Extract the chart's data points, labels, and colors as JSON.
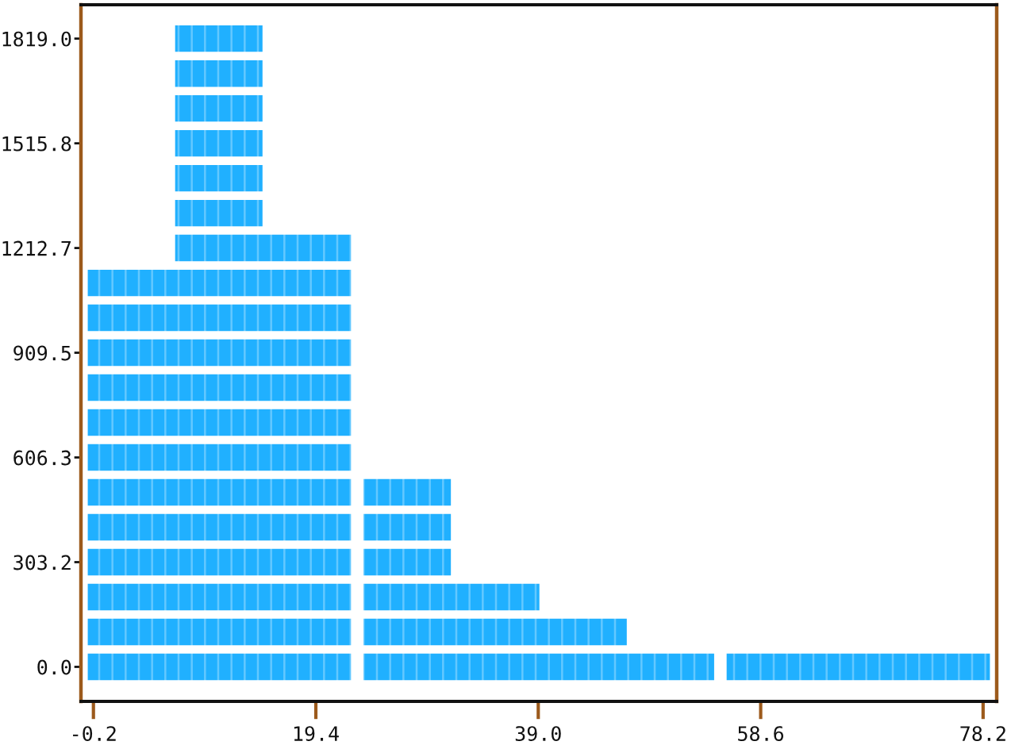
{
  "chart_data": {
    "type": "bar",
    "orientation": "horizontal",
    "series": [
      {
        "color": "#20b0ff",
        "x": [
          0,
          101.1,
          202.1,
          303.2,
          404.2,
          505.3,
          606.3,
          707.4,
          808.4,
          909.5,
          1010.6,
          1111.6,
          1212.7,
          1313.7,
          1414.8,
          1515.8,
          1616.9,
          1717.9,
          1819.0
        ],
        "base": [
          -0.7,
          -0.7,
          -0.7,
          -0.7,
          -0.7,
          -0.7,
          -0.7,
          -0.7,
          -0.7,
          -0.7,
          -0.7,
          -0.7,
          7.0,
          7.0,
          7.0,
          7.0,
          7.0,
          7.0,
          7.0
        ],
        "values": [
          23.2,
          23.2,
          23.2,
          23.2,
          23.2,
          23.2,
          23.2,
          23.2,
          23.2,
          23.2,
          23.2,
          23.2,
          15.5,
          7.7,
          7.7,
          7.7,
          7.7,
          7.7,
          7.7
        ]
      },
      {
        "color": "#20b0ff",
        "x": [
          0,
          101.1,
          202.1,
          303.2,
          404.2,
          505.3
        ],
        "base": [
          23.6,
          23.6,
          23.6,
          23.6,
          23.6,
          23.6
        ],
        "values": [
          30.9,
          23.2,
          15.5,
          7.7,
          7.7,
          7.7
        ]
      },
      {
        "color": "#20b0ff",
        "x": [
          0
        ],
        "base": [
          55.6
        ],
        "values": [
          23.2
        ]
      }
    ],
    "xlim": [
      -1.3,
      79.4
    ],
    "xticks": [
      -0.2,
      19.4,
      {
        "value": 39.0,
        "label": "39.0"
      },
      58.6,
      78.2
    ],
    "ylim": [
      -100,
      1917
    ],
    "yticks": [
      {
        "value": 0,
        "label": "0.0"
      },
      303.2,
      606.3,
      909.5,
      1212.7,
      1515.8,
      {
        "value": 1819,
        "label": "1819.0"
      }
    ]
  }
}
